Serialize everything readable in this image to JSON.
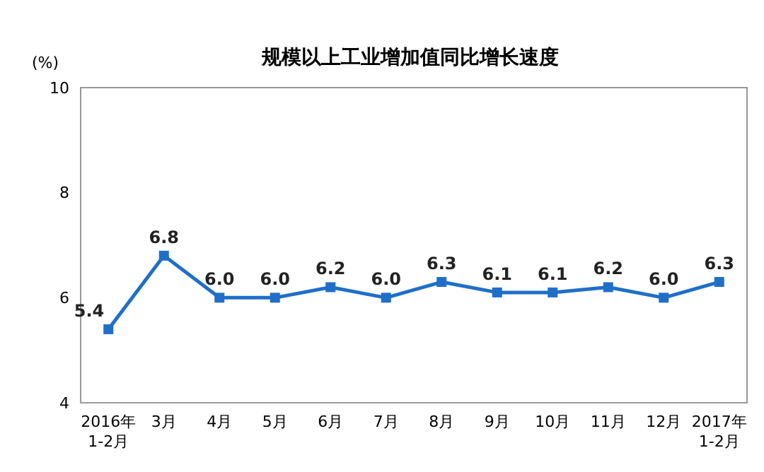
{
  "chart_data": {
    "type": "line",
    "title": "规模以上工业增加值同比增长速度",
    "ylabel": "(%)",
    "categories": [
      "2016年\n1-2月",
      "3月",
      "4月",
      "5月",
      "6月",
      "7月",
      "8月",
      "9月",
      "10月",
      "11月",
      "12月",
      "2017年\n1-2月"
    ],
    "series": [
      {
        "color": "#1f6fc8",
        "values": [
          5.4,
          6.8,
          6.0,
          6.0,
          6.2,
          6.0,
          6.3,
          6.1,
          6.1,
          6.2,
          6.0,
          6.3
        ],
        "value_labels": [
          "5.4",
          "6.8",
          "6.0",
          "6.0",
          "6.2",
          "6.0",
          "6.3",
          "6.1",
          "6.1",
          "6.2",
          "6.0",
          "6.3"
        ]
      }
    ],
    "ylim": [
      4,
      10
    ],
    "yticks": [
      4,
      6,
      8,
      10
    ],
    "grid": false,
    "marker": "square",
    "line_style": "solid"
  }
}
